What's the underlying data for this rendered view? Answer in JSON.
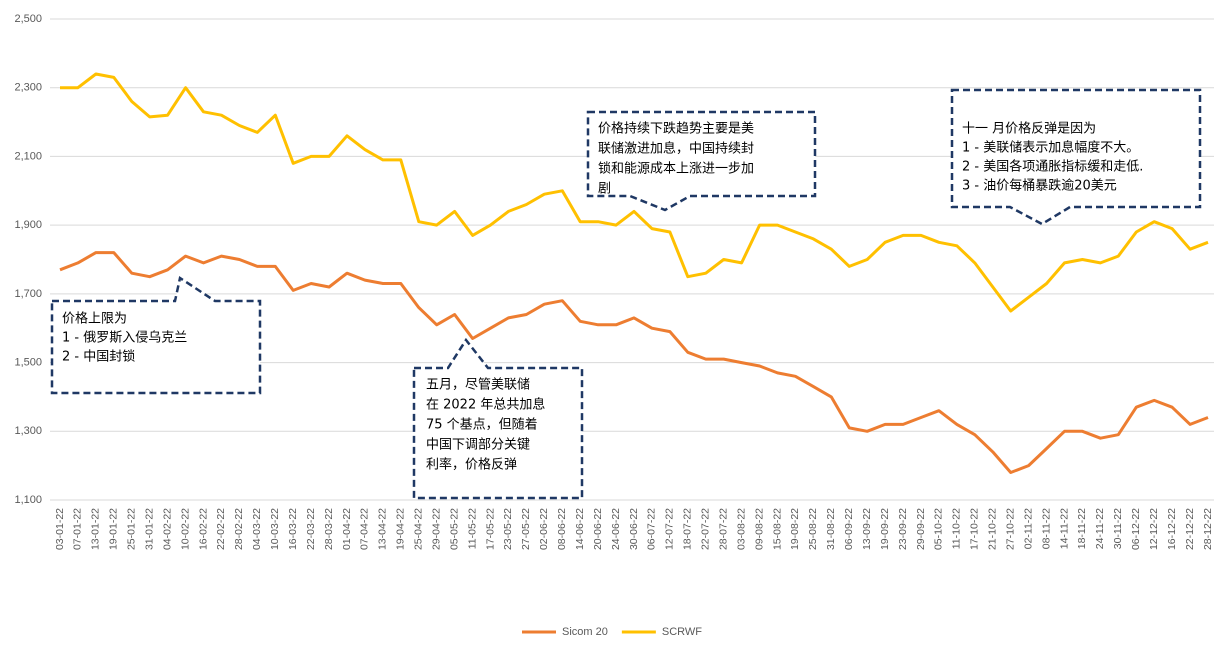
{
  "chart_data": {
    "type": "line",
    "categories": [
      "03-01-22",
      "07-01-22",
      "13-01-22",
      "19-01-22",
      "25-01-22",
      "31-01-22",
      "04-02-22",
      "10-02-22",
      "16-02-22",
      "22-02-22",
      "28-02-22",
      "04-03-22",
      "10-03-22",
      "16-03-22",
      "22-03-22",
      "28-03-22",
      "01-04-22",
      "07-04-22",
      "13-04-22",
      "19-04-22",
      "25-04-22",
      "29-04-22",
      "05-05-22",
      "11-05-22",
      "17-05-22",
      "23-05-22",
      "27-05-22",
      "02-06-22",
      "08-06-22",
      "14-06-22",
      "20-06-22",
      "24-06-22",
      "30-06-22",
      "06-07-22",
      "12-07-22",
      "18-07-22",
      "22-07-22",
      "28-07-22",
      "03-08-22",
      "09-08-22",
      "15-08-22",
      "19-08-22",
      "25-08-22",
      "31-08-22",
      "06-09-22",
      "13-09-22",
      "19-09-22",
      "23-09-22",
      "29-09-22",
      "05-10-22",
      "11-10-22",
      "17-10-22",
      "21-10-22",
      "27-10-22",
      "02-11-22",
      "08-11-22",
      "14-11-22",
      "18-11-22",
      "24-11-22",
      "30-11-22",
      "06-12-22",
      "12-12-22",
      "16-12-22",
      "22-12-22",
      "28-12-22"
    ],
    "series": [
      {
        "name": "Sicom 20",
        "color": "#ed7d31",
        "values": [
          1770,
          1790,
          1820,
          1820,
          1760,
          1750,
          1770,
          1810,
          1790,
          1810,
          1800,
          1780,
          1780,
          1710,
          1730,
          1720,
          1760,
          1740,
          1730,
          1730,
          1660,
          1610,
          1640,
          1570,
          1600,
          1630,
          1640,
          1670,
          1680,
          1620,
          1610,
          1610,
          1630,
          1600,
          1590,
          1530,
          1510,
          1510,
          1500,
          1490,
          1470,
          1460,
          1430,
          1400,
          1310,
          1300,
          1320,
          1320,
          1340,
          1360,
          1320,
          1290,
          1240,
          1180,
          1200,
          1250,
          1300,
          1300,
          1280,
          1290,
          1370,
          1390,
          1370,
          1320,
          1340
        ]
      },
      {
        "name": "SCRWF",
        "color": "#ffc000",
        "values": [
          2300,
          2300,
          2340,
          2330,
          2260,
          2215,
          2220,
          2300,
          2230,
          2220,
          2190,
          2170,
          2220,
          2080,
          2100,
          2100,
          2160,
          2120,
          2090,
          2090,
          1910,
          1900,
          1940,
          1870,
          1900,
          1940,
          1960,
          1990,
          2000,
          1910,
          1910,
          1900,
          1940,
          1890,
          1880,
          1750,
          1760,
          1800,
          1790,
          1900,
          1900,
          1880,
          1860,
          1830,
          1780,
          1800,
          1850,
          1870,
          1870,
          1850,
          1840,
          1790,
          1720,
          1650,
          1690,
          1730,
          1790,
          1800,
          1790,
          1810,
          1880,
          1910,
          1890,
          1830,
          1850
        ]
      }
    ],
    "ylim": [
      1100,
      2500
    ],
    "yticks": [
      {
        "value": 1100,
        "label": "1,100"
      },
      {
        "value": 1300,
        "label": "1,300"
      },
      {
        "value": 1500,
        "label": "1,500"
      },
      {
        "value": 1700,
        "label": "1,700"
      },
      {
        "value": 1900,
        "label": "1,900"
      },
      {
        "value": 2100,
        "label": "2,100"
      },
      {
        "value": 2300,
        "label": "2,300"
      },
      {
        "value": 2500,
        "label": "2,500"
      }
    ],
    "grid": true,
    "annotations": [
      {
        "lines": [
          "价格上限为",
          "1 - 俄罗斯入侵乌克兰",
          "2 - 中国封锁"
        ]
      },
      {
        "lines": [
          "五月，尽管美联储",
          "在 2022 年总共加息",
          "75 个基点，但随着",
          "中国下调部分关键",
          "利率，价格反弹"
        ]
      },
      {
        "lines": [
          "价格持续下跌趋势主要是美",
          "联储激进加息，中国持续封",
          "锁和能源成本上涨进一步加",
          "剧"
        ]
      },
      {
        "lines": [
          "十一 月价格反弹是因为",
          "1 - 美联储表示加息幅度不大。",
          "2 - 美国各项通胀指标缓和走低.",
          "3 - 油价每桶暴跌逾20美元"
        ]
      }
    ]
  }
}
